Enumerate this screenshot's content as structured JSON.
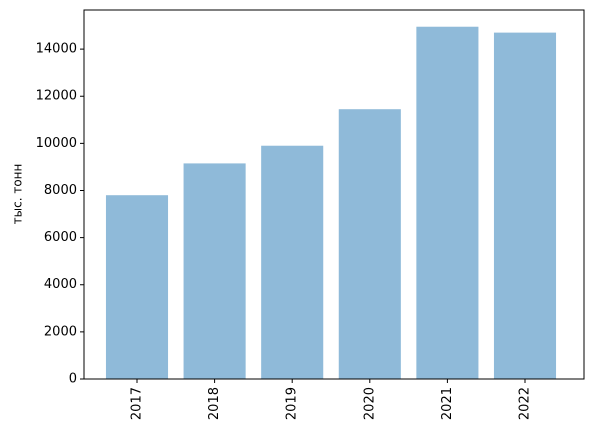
{
  "chart_data": {
    "type": "bar",
    "y_label": "тыс. тонн",
    "categories": [
      "2017",
      "2018",
      "2019",
      "2020",
      "2021",
      "2022"
    ],
    "values": [
      7800,
      9150,
      9900,
      11450,
      14950,
      14700
    ],
    "color": "#8fbad9",
    "ylim": [
      0,
      15660
    ],
    "yticks": [
      0,
      2000,
      4000,
      6000,
      8000,
      10000,
      12000,
      14000
    ],
    "grid": false
  }
}
